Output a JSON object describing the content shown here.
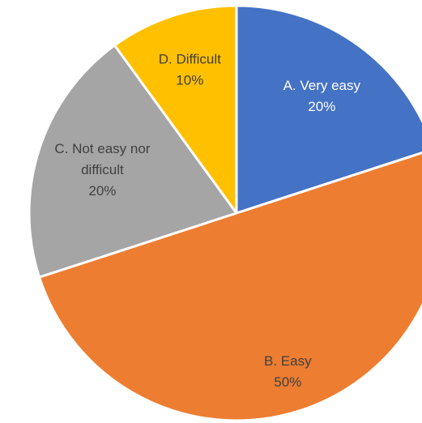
{
  "chart_data": {
    "type": "pie",
    "title": "",
    "slices": [
      {
        "label_lines": [
          "A. Very easy"
        ],
        "pct_label": "20%",
        "value": 20,
        "color": "#4472C4",
        "text_color": "#ffffff"
      },
      {
        "label_lines": [
          "B. Easy"
        ],
        "pct_label": "50%",
        "value": 50,
        "color": "#ED7D31",
        "text_color": "#404040"
      },
      {
        "label_lines": [
          "C. Not easy nor",
          "difficult"
        ],
        "pct_label": "20%",
        "value": 20,
        "color": "#A5A5A5",
        "text_color": "#404040"
      },
      {
        "label_lines": [
          "D. Difficult"
        ],
        "pct_label": "10%",
        "value": 10,
        "color": "#FFC000",
        "text_color": "#404040"
      }
    ],
    "start": "12 o'clock",
    "direction": "clockwise",
    "legend": "none"
  }
}
